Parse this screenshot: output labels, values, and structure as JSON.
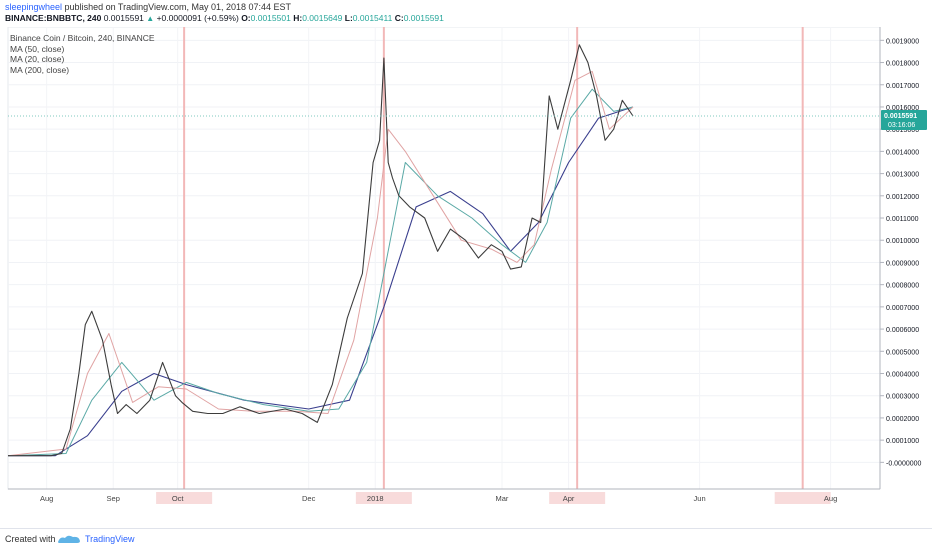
{
  "header": {
    "username": "sleepingwheel",
    "published_text": " published on TradingView.com, May 01, 2018 07:44 EST",
    "symbol": "BINANCE:BNBBTC, 240",
    "change": "+0.0000091 (+0.59%)",
    "ohlc_labels": {
      "o": "O:",
      "h": "H:",
      "l": "L:",
      "c": "C:"
    },
    "ohlc_values": {
      "o": "0.0015501",
      "h": "0.0015649",
      "l": "0.0015411",
      "c": "0.0015591"
    },
    "last": "0.0015591"
  },
  "legend": [
    "Binance Coin / Bitcoin, 240, BINANCE",
    "MA (50, close)",
    "MA (20, close)",
    "MA (200, close)"
  ],
  "footer": {
    "created_with": "Created with",
    "brand": "TradingView"
  },
  "price_tag": {
    "value": "0.0015591",
    "countdown": "03:16:06"
  },
  "colors": {
    "price": "#3c3c3c",
    "ma200": "#3a3f8e",
    "ma50": "#5aa9a6",
    "ma20": "#e0a3a3",
    "session_line": "#f2b8b8",
    "price_line": "#7fc8bf",
    "price_tag_bg": "#26a69a",
    "link": "#2962ff"
  },
  "chart_data": {
    "type": "line",
    "ylim": [
      -0.00012,
      0.00196
    ],
    "ytick_labels": [
      "-0.0000000",
      "0.0001000",
      "0.0002000",
      "0.0003000",
      "0.0004000",
      "0.0005000",
      "0.0006000",
      "0.0007000",
      "0.0008000",
      "0.0009000",
      "0.0010000",
      "0.0011000",
      "0.0012000",
      "0.0013000",
      "0.0014000",
      "0.0015000",
      "0.0016000",
      "0.0017000",
      "0.0018000",
      "0.0019000"
    ],
    "ytick_values": [
      0,
      0.0001,
      0.0002,
      0.0003,
      0.0004,
      0.0005,
      0.0006,
      0.0007,
      0.0008,
      0.0009,
      0.001,
      0.0011,
      0.0012,
      0.0013,
      0.0014,
      0.0015,
      0.0016,
      0.0017,
      0.0018,
      0.0019
    ],
    "x_tick_labels": [
      "Aug",
      "Sep",
      "Oct",
      "Dec",
      "2018",
      "Mar",
      "Apr",
      "Jun",
      "Aug"
    ],
    "x_range": [
      "2017-07-14",
      "2018-08-24"
    ],
    "x_ticks": [
      "2017-08-01",
      "2017-09-01",
      "2017-10-01",
      "2017-12-01",
      "2018-01-01",
      "2018-03-01",
      "2018-04-01",
      "2018-06-01",
      "2018-08-01"
    ],
    "session_marks": [
      "2017-10-04",
      "2018-01-05",
      "2018-04-05",
      "2018-07-19"
    ],
    "series": [
      {
        "key": "price",
        "x": [
          "2017-07-14",
          "2017-07-25",
          "2017-08-03",
          "2017-08-08",
          "2017-08-12",
          "2017-08-16",
          "2017-08-19",
          "2017-08-22",
          "2017-08-27",
          "2017-08-31",
          "2017-09-03",
          "2017-09-07",
          "2017-09-12",
          "2017-09-18",
          "2017-09-24",
          "2017-09-30",
          "2017-10-03",
          "2017-10-08",
          "2017-10-15",
          "2017-10-22",
          "2017-10-30",
          "2017-11-08",
          "2017-11-20",
          "2017-11-28",
          "2017-12-05",
          "2017-12-12",
          "2017-12-19",
          "2017-12-26",
          "2017-12-31",
          "2018-01-03",
          "2018-01-05",
          "2018-01-07",
          "2018-01-09",
          "2018-01-12",
          "2018-01-17",
          "2018-01-24",
          "2018-01-30",
          "2018-02-05",
          "2018-02-12",
          "2018-02-18",
          "2018-02-24",
          "2018-03-01",
          "2018-03-05",
          "2018-03-10",
          "2018-03-15",
          "2018-03-19",
          "2018-03-23",
          "2018-03-27",
          "2018-04-02",
          "2018-04-06",
          "2018-04-10",
          "2018-04-14",
          "2018-04-18",
          "2018-04-22",
          "2018-04-26",
          "2018-05-01"
        ],
        "values": [
          3e-05,
          3e-05,
          3e-05,
          4e-05,
          0.00015,
          0.0004,
          0.00062,
          0.00068,
          0.00055,
          0.00035,
          0.00022,
          0.00026,
          0.00022,
          0.00028,
          0.00045,
          0.0003,
          0.00027,
          0.00023,
          0.00022,
          0.00022,
          0.00025,
          0.00022,
          0.00024,
          0.00022,
          0.00018,
          0.00035,
          0.00065,
          0.00085,
          0.00135,
          0.00145,
          0.00182,
          0.00135,
          0.00128,
          0.0012,
          0.00115,
          0.0011,
          0.00095,
          0.00105,
          0.001,
          0.00092,
          0.00098,
          0.00095,
          0.00087,
          0.00088,
          0.0011,
          0.00108,
          0.00165,
          0.0015,
          0.00172,
          0.00188,
          0.0018,
          0.00165,
          0.00145,
          0.0015,
          0.00163,
          0.0015591
        ]
      },
      {
        "key": "ma20",
        "x": [
          "2017-07-14",
          "2017-08-10",
          "2017-08-20",
          "2017-08-30",
          "2017-09-10",
          "2017-09-22",
          "2017-10-05",
          "2017-10-20",
          "2017-11-05",
          "2017-11-25",
          "2017-12-10",
          "2017-12-22",
          "2018-01-02",
          "2018-01-07",
          "2018-01-15",
          "2018-01-28",
          "2018-02-10",
          "2018-02-24",
          "2018-03-08",
          "2018-03-16",
          "2018-03-24",
          "2018-04-04",
          "2018-04-12",
          "2018-04-20",
          "2018-05-01"
        ],
        "values": [
          3e-05,
          6e-05,
          0.0004,
          0.00058,
          0.00027,
          0.00034,
          0.00033,
          0.00024,
          0.00023,
          0.00023,
          0.00022,
          0.00055,
          0.0011,
          0.0015,
          0.0014,
          0.0012,
          0.001,
          0.00096,
          0.0009,
          0.00098,
          0.00132,
          0.00172,
          0.00176,
          0.0015,
          0.0016
        ]
      },
      {
        "key": "ma50",
        "x": [
          "2017-07-14",
          "2017-08-10",
          "2017-08-22",
          "2017-09-05",
          "2017-09-20",
          "2017-10-05",
          "2017-10-20",
          "2017-11-10",
          "2017-12-01",
          "2017-12-15",
          "2017-12-28",
          "2018-01-06",
          "2018-01-15",
          "2018-01-30",
          "2018-02-15",
          "2018-03-01",
          "2018-03-12",
          "2018-03-22",
          "2018-04-02",
          "2018-04-12",
          "2018-04-22",
          "2018-05-01"
        ],
        "values": [
          3e-05,
          4e-05,
          0.00028,
          0.00045,
          0.00028,
          0.00036,
          0.00031,
          0.00026,
          0.00023,
          0.00024,
          0.00045,
          0.0009,
          0.00135,
          0.0012,
          0.0011,
          0.00098,
          0.0009,
          0.00108,
          0.00155,
          0.00168,
          0.00158,
          0.0016
        ]
      },
      {
        "key": "ma200",
        "x": [
          "2017-07-14",
          "2017-08-05",
          "2017-08-20",
          "2017-09-05",
          "2017-09-20",
          "2017-10-05",
          "2017-11-01",
          "2017-12-01",
          "2017-12-20",
          "2018-01-05",
          "2018-01-20",
          "2018-02-05",
          "2018-02-20",
          "2018-03-05",
          "2018-03-18",
          "2018-04-01",
          "2018-04-15",
          "2018-05-01"
        ],
        "values": [
          3e-05,
          3e-05,
          0.00012,
          0.00032,
          0.0004,
          0.00035,
          0.00028,
          0.00024,
          0.00028,
          0.0007,
          0.00115,
          0.00122,
          0.00112,
          0.00095,
          0.00108,
          0.00135,
          0.00155,
          0.0016
        ]
      }
    ]
  }
}
